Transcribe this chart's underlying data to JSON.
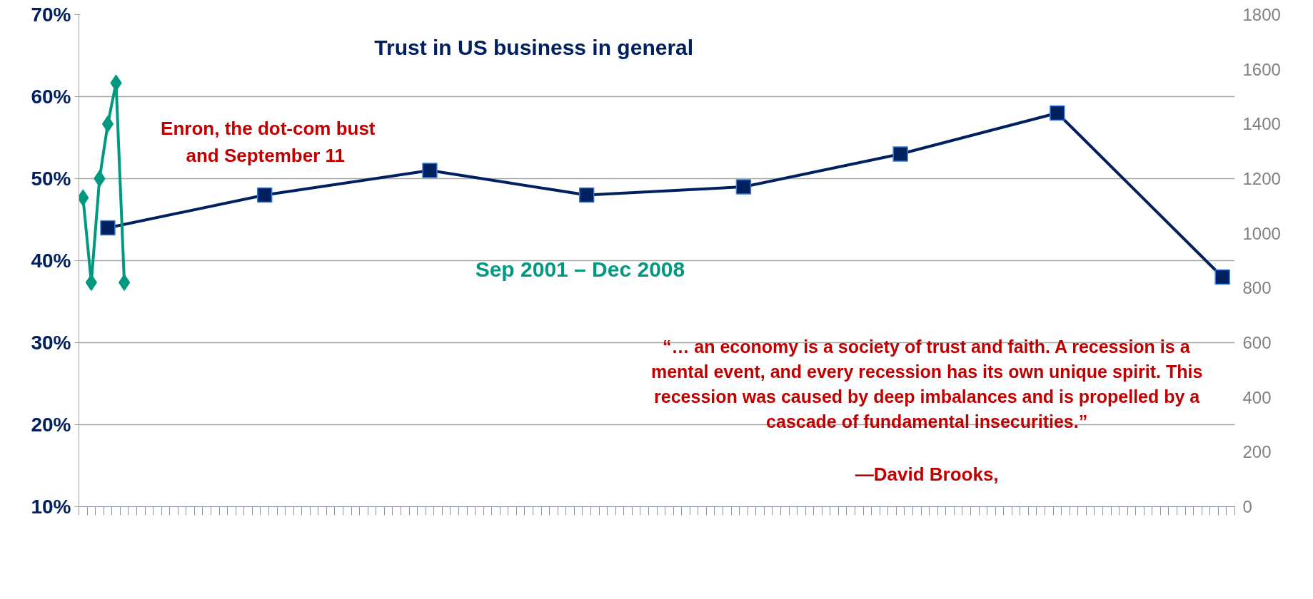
{
  "chart_data": {
    "type": "line",
    "title": "Trust in US business in general",
    "categories": [
      null,
      null,
      null,
      null,
      null,
      null,
      null,
      null,
      null,
      null,
      null,
      null,
      null,
      null,
      null,
      null,
      null,
      null,
      null,
      null,
      null,
      null,
      null,
      null,
      null,
      null,
      null,
      null,
      null,
      null,
      null,
      null,
      null,
      null,
      null,
      null,
      null,
      null,
      null,
      null,
      null,
      null,
      null,
      null,
      null,
      null,
      null,
      null,
      null,
      null,
      null,
      null,
      null,
      null,
      null,
      null,
      null,
      null,
      null,
      null,
      null,
      null,
      null,
      null,
      null,
      null,
      null,
      null,
      null,
      null,
      null,
      null,
      null,
      null,
      null,
      null,
      null,
      null,
      null,
      null,
      null,
      null,
      null,
      null,
      null,
      null,
      null,
      null,
      null,
      null,
      null,
      null,
      null,
      null,
      null,
      null,
      null,
      null,
      null,
      null,
      null,
      null,
      null,
      null,
      null,
      null,
      null,
      null,
      null,
      null,
      null,
      null,
      null,
      null,
      null,
      null,
      null,
      null,
      null,
      null,
      null,
      null,
      null,
      null,
      null,
      null,
      null,
      null,
      null,
      null,
      null,
      null,
      null,
      null,
      null,
      null,
      null,
      null,
      null,
      null
    ],
    "ylim": [
      10,
      70
    ],
    "yticks": [
      {
        "value": 10,
        "label": "10%"
      },
      {
        "value": 20,
        "label": "20%"
      },
      {
        "value": 30,
        "label": "30%"
      },
      {
        "value": 40,
        "label": "40%"
      },
      {
        "value": 50,
        "label": "50%"
      },
      {
        "value": 60,
        "label": "60%"
      },
      {
        "value": 70,
        "label": "70%"
      }
    ],
    "y2lim": [
      0,
      1800
    ],
    "y2ticks": [
      0,
      200,
      400,
      600,
      800,
      1000,
      1200,
      1400,
      1600,
      1800
    ],
    "grid": "y",
    "line_style": "solid",
    "series": [
      {
        "color": "#002060",
        "marker": "square",
        "values": [
          null,
          null,
          null,
          44,
          null,
          null,
          null,
          null,
          null,
          null,
          null,
          null,
          null,
          null,
          null,
          null,
          null,
          null,
          null,
          null,
          null,
          null,
          48,
          null,
          null,
          null,
          null,
          null,
          null,
          null,
          null,
          null,
          null,
          null,
          null,
          null,
          null,
          null,
          null,
          null,
          null,
          null,
          51,
          null,
          null,
          null,
          null,
          null,
          null,
          null,
          null,
          null,
          null,
          null,
          null,
          null,
          null,
          null,
          null,
          null,
          null,
          48,
          null,
          null,
          null,
          null,
          null,
          null,
          null,
          null,
          null,
          null,
          null,
          null,
          null,
          null,
          null,
          null,
          null,
          null,
          49,
          null,
          null,
          null,
          null,
          null,
          null,
          null,
          null,
          null,
          null,
          null,
          null,
          null,
          null,
          null,
          null,
          null,
          null,
          53,
          null,
          null,
          null,
          null,
          null,
          null,
          null,
          null,
          null,
          null,
          null,
          null,
          null,
          null,
          null,
          null,
          null,
          null,
          58,
          null,
          null,
          null,
          null,
          null,
          null,
          null,
          null,
          null,
          null,
          null,
          null,
          null,
          null,
          null,
          null,
          null,
          null,
          null,
          38,
          null
        ]
      },
      {
        "name": "Sep 2001 – Dec 2008",
        "color": "#009980",
        "marker": "diamond",
        "axis": "y2",
        "values": [
          1130,
          820,
          1200,
          1400,
          1550,
          820,
          null,
          null,
          null,
          null,
          null,
          null,
          null,
          null,
          null,
          null,
          null,
          null,
          null,
          null,
          null,
          null,
          null,
          null,
          null,
          null,
          null,
          null,
          null,
          null,
          null,
          null,
          null,
          null,
          null,
          null,
          null,
          null,
          null,
          null,
          null,
          null,
          null,
          null,
          null,
          null,
          null,
          null,
          null,
          null,
          null,
          null,
          null,
          null,
          null,
          null,
          null,
          null,
          null,
          null,
          null,
          null,
          null,
          null,
          null,
          null,
          null,
          null,
          null,
          null,
          null,
          null,
          null,
          null,
          null,
          null,
          null,
          null,
          null,
          null,
          null,
          null,
          null,
          null,
          null,
          null,
          null,
          null,
          null,
          null,
          null,
          null,
          null,
          null,
          null,
          null,
          null,
          null,
          null,
          null,
          null,
          null,
          null,
          null,
          null,
          null,
          null,
          null,
          null,
          null,
          null,
          null,
          null,
          null,
          null,
          null,
          null,
          null,
          null,
          null,
          null,
          null,
          null,
          null,
          null,
          null,
          null,
          null,
          null,
          null,
          null,
          null,
          null,
          null,
          null,
          null,
          null,
          null,
          null,
          null
        ]
      }
    ],
    "annotations": [
      "Enron, the dot-com bust\nand September  11",
      "“… an economy is a society of trust and faith. A recession is a\nmental event, and every recession has its own unique spirit. This\nrecession was caused by deep imbalances and is propelled by a\ncascade of fundamental insecurities.”",
      "—David Brooks,"
    ]
  }
}
